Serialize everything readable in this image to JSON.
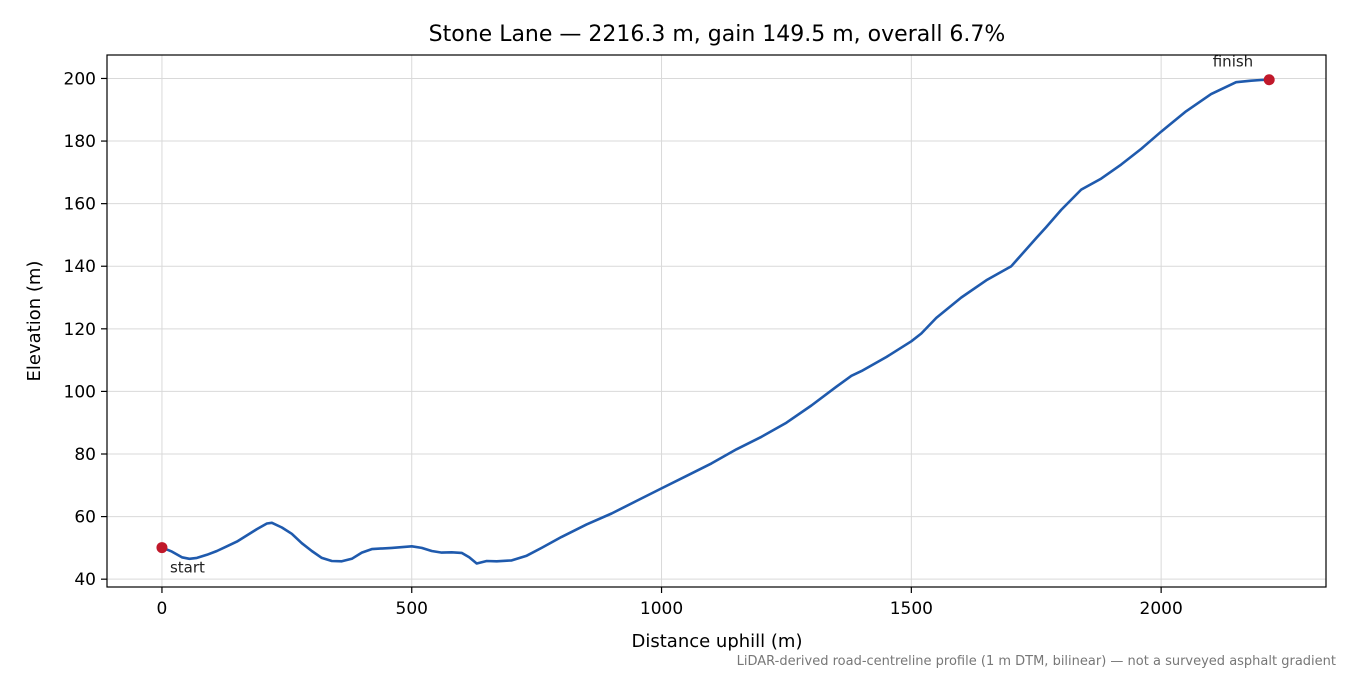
{
  "chart_data": {
    "type": "line",
    "title": "Stone Lane — 2216.3 m, gain 149.5 m, overall 6.7%",
    "xlabel": "Distance uphill (m)",
    "ylabel": "Elevation (m)",
    "xlim": [
      -110,
      2330
    ],
    "ylim": [
      37.5,
      207.5
    ],
    "xticks": [
      0,
      500,
      1000,
      1500,
      2000
    ],
    "yticks": [
      40,
      60,
      80,
      100,
      120,
      140,
      160,
      180,
      200
    ],
    "grid": true,
    "line_color": "#1f5aad",
    "marker_color": "#c0182a",
    "annotations": [
      {
        "name": "start-annotation",
        "text": "start",
        "x": 0,
        "y": 50.1
      },
      {
        "name": "finish-annotation",
        "text": "finish",
        "x": 2216.3,
        "y": 199.6
      }
    ],
    "footnote": "LiDAR-derived road-centreline profile (1 m DTM, bilinear) — not a surveyed asphalt gradient",
    "series": [
      {
        "x": [
          0,
          20,
          40,
          55,
          70,
          90,
          110,
          130,
          150,
          170,
          190,
          210,
          220,
          240,
          260,
          280,
          300,
          320,
          340,
          360,
          380,
          400,
          420,
          460,
          500,
          520,
          540,
          560,
          580,
          600,
          615,
          630,
          650,
          670,
          700,
          730,
          760,
          800,
          850,
          900,
          950,
          1000,
          1050,
          1100,
          1150,
          1200,
          1250,
          1300,
          1350,
          1380,
          1400,
          1450,
          1500,
          1520,
          1550,
          1600,
          1650,
          1700,
          1750,
          1770,
          1800,
          1840,
          1880,
          1920,
          1960,
          2000,
          2050,
          2100,
          2150,
          2180,
          2200,
          2216.3
        ],
        "y": [
          50.1,
          48.8,
          47.0,
          46.5,
          46.8,
          47.8,
          49.0,
          50.5,
          52.0,
          54.0,
          56.0,
          57.8,
          58.0,
          56.5,
          54.5,
          51.5,
          49.0,
          46.8,
          45.8,
          45.7,
          46.5,
          48.5,
          49.6,
          50.0,
          50.5,
          50.0,
          49.0,
          48.5,
          48.6,
          48.4,
          47.0,
          45.0,
          45.8,
          45.7,
          46.0,
          47.5,
          50.0,
          53.5,
          57.5,
          61.0,
          65.0,
          69.0,
          73.0,
          77.0,
          81.5,
          85.5,
          90.0,
          95.5,
          101.5,
          105.0,
          106.5,
          111.0,
          116.0,
          118.5,
          123.5,
          130.0,
          135.5,
          140.0,
          149.0,
          152.5,
          158.0,
          164.5,
          168.0,
          172.5,
          177.5,
          183.0,
          189.5,
          195.0,
          198.8,
          199.3,
          199.5,
          199.6
        ]
      }
    ]
  }
}
